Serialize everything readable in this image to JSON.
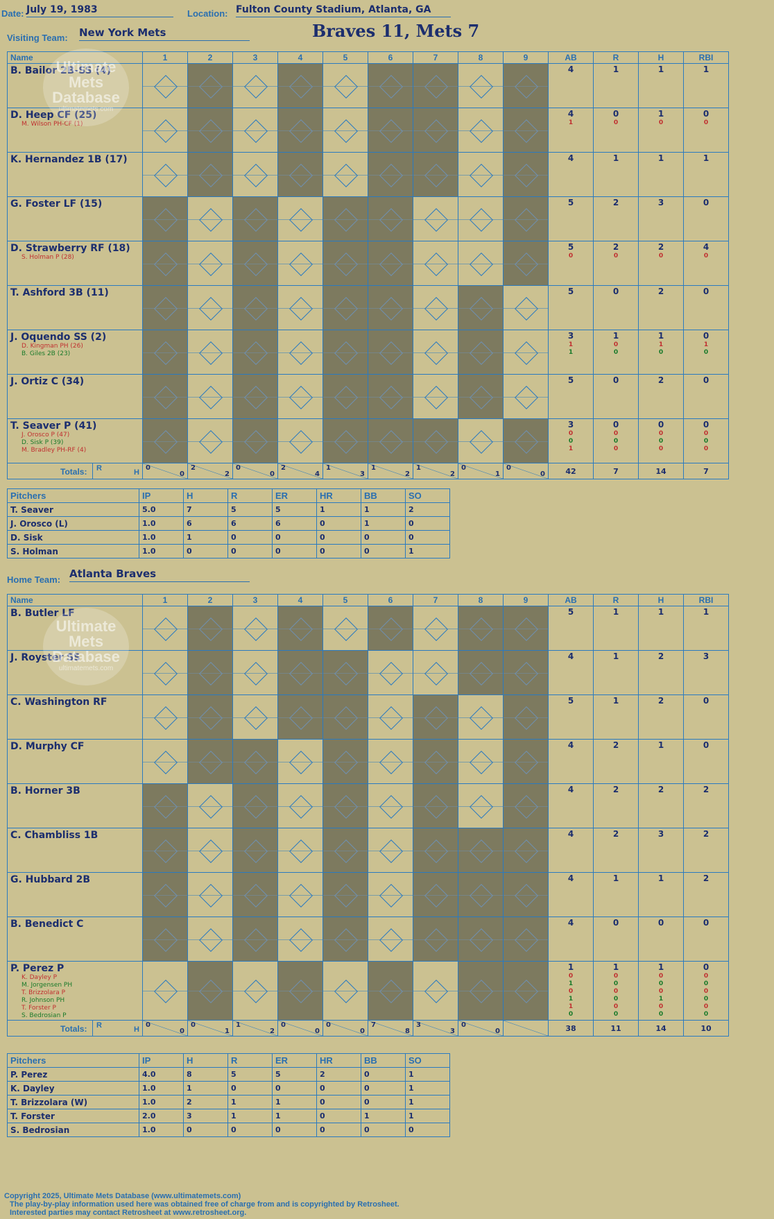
{
  "header": {
    "date_label": "Date:",
    "date": "July 19, 1983",
    "location_label": "Location:",
    "location": "Fulton County Stadium, Atlanta, GA",
    "title": "Braves 11, Mets 7"
  },
  "watermark": {
    "line1": "Ultimate",
    "line2": "Mets",
    "line3": "Database",
    "url": "ultimatemets.com"
  },
  "visitors": {
    "team_label": "Visiting Team:",
    "team": "New York Mets",
    "col_name": "Name",
    "innings": [
      "1",
      "2",
      "3",
      "4",
      "5",
      "6",
      "7",
      "8",
      "9"
    ],
    "stat_cols": [
      "AB",
      "R",
      "H",
      "RBI"
    ],
    "players": [
      {
        "name": "B. Bailor 2B-SS (4)",
        "subs": [],
        "ab": [
          "4"
        ],
        "r": [
          "1"
        ],
        "h": [
          "1"
        ],
        "rbi": [
          "1"
        ]
      },
      {
        "name": "D. Heep CF (25)",
        "subs": [
          "M. Wilson PH-CF (1)"
        ],
        "ab": [
          "4",
          "1"
        ],
        "r": [
          "0",
          "0"
        ],
        "h": [
          "1",
          "0"
        ],
        "rbi": [
          "0",
          "0"
        ]
      },
      {
        "name": "K. Hernandez 1B (17)",
        "subs": [],
        "ab": [
          "4"
        ],
        "r": [
          "1"
        ],
        "h": [
          "1"
        ],
        "rbi": [
          "1"
        ]
      },
      {
        "name": "G. Foster LF (15)",
        "subs": [],
        "ab": [
          "5"
        ],
        "r": [
          "2"
        ],
        "h": [
          "3"
        ],
        "rbi": [
          "0"
        ]
      },
      {
        "name": "D. Strawberry RF (18)",
        "subs": [
          "S. Holman P (28)"
        ],
        "ab": [
          "5",
          "0"
        ],
        "r": [
          "2",
          "0"
        ],
        "h": [
          "2",
          "0"
        ],
        "rbi": [
          "4",
          "0"
        ]
      },
      {
        "name": "T. Ashford 3B (11)",
        "subs": [],
        "ab": [
          "5"
        ],
        "r": [
          "0"
        ],
        "h": [
          "2"
        ],
        "rbi": [
          "0"
        ]
      },
      {
        "name": "J. Oquendo SS (2)",
        "subs": [
          "D. Kingman PH (26)",
          "B. Giles 2B (23)"
        ],
        "ab": [
          "3",
          "1",
          "1"
        ],
        "r": [
          "1",
          "0",
          "0"
        ],
        "h": [
          "1",
          "1",
          "0"
        ],
        "rbi": [
          "0",
          "1",
          "0"
        ]
      },
      {
        "name": "J. Ortiz C (34)",
        "subs": [],
        "ab": [
          "5"
        ],
        "r": [
          "0"
        ],
        "h": [
          "2"
        ],
        "rbi": [
          "0"
        ]
      },
      {
        "name": "T. Seaver P (41)",
        "subs": [
          "J. Orosco P (47)",
          "D. Sisk P (39)",
          "M. Bradley PH-RF (4)"
        ],
        "ab": [
          "3",
          "0",
          "0",
          "1"
        ],
        "r": [
          "0",
          "0",
          "0",
          "0"
        ],
        "h": [
          "0",
          "0",
          "0",
          "0"
        ],
        "rbi": [
          "0",
          "0",
          "0",
          "0"
        ]
      }
    ],
    "totals_label": "Totals:",
    "rh_r": "R",
    "rh_h": "H",
    "inning_totals": [
      [
        "0",
        "0"
      ],
      [
        "2",
        "2"
      ],
      [
        "0",
        "0"
      ],
      [
        "2",
        "4"
      ],
      [
        "1",
        "3"
      ],
      [
        "1",
        "2"
      ],
      [
        "1",
        "2"
      ],
      [
        "0",
        "1"
      ],
      [
        "0",
        "0"
      ]
    ],
    "totals": [
      "42",
      "7",
      "14",
      "7"
    ],
    "pitchers_label": "Pitchers",
    "pitch_cols": [
      "IP",
      "H",
      "R",
      "ER",
      "HR",
      "BB",
      "SO"
    ],
    "pitchers": [
      {
        "name": "T. Seaver",
        "stats": [
          "5.0",
          "7",
          "5",
          "5",
          "1",
          "1",
          "2"
        ]
      },
      {
        "name": "J. Orosco (L)",
        "stats": [
          "1.0",
          "6",
          "6",
          "6",
          "0",
          "1",
          "0"
        ]
      },
      {
        "name": "D. Sisk",
        "stats": [
          "1.0",
          "1",
          "0",
          "0",
          "0",
          "0",
          "0"
        ]
      },
      {
        "name": "S. Holman",
        "stats": [
          "1.0",
          "0",
          "0",
          "0",
          "0",
          "0",
          "1"
        ]
      }
    ]
  },
  "home": {
    "team_label": "Home Team:",
    "team": "Atlanta Braves",
    "col_name": "Name",
    "innings": [
      "1",
      "2",
      "3",
      "4",
      "5",
      "6",
      "7",
      "8",
      "9"
    ],
    "stat_cols": [
      "AB",
      "R",
      "H",
      "RBI"
    ],
    "players": [
      {
        "name": "B. Butler LF",
        "subs": [],
        "ab": [
          "5"
        ],
        "r": [
          "1"
        ],
        "h": [
          "1"
        ],
        "rbi": [
          "1"
        ]
      },
      {
        "name": "J. Royster SS",
        "subs": [],
        "ab": [
          "4"
        ],
        "r": [
          "1"
        ],
        "h": [
          "2"
        ],
        "rbi": [
          "3"
        ]
      },
      {
        "name": "C. Washington RF",
        "subs": [],
        "ab": [
          "5"
        ],
        "r": [
          "1"
        ],
        "h": [
          "2"
        ],
        "rbi": [
          "0"
        ]
      },
      {
        "name": "D. Murphy CF",
        "subs": [],
        "ab": [
          "4"
        ],
        "r": [
          "2"
        ],
        "h": [
          "1"
        ],
        "rbi": [
          "0"
        ]
      },
      {
        "name": "B. Horner 3B",
        "subs": [],
        "ab": [
          "4"
        ],
        "r": [
          "2"
        ],
        "h": [
          "2"
        ],
        "rbi": [
          "2"
        ]
      },
      {
        "name": "C. Chambliss 1B",
        "subs": [],
        "ab": [
          "4"
        ],
        "r": [
          "2"
        ],
        "h": [
          "3"
        ],
        "rbi": [
          "2"
        ]
      },
      {
        "name": "G. Hubbard 2B",
        "subs": [],
        "ab": [
          "4"
        ],
        "r": [
          "1"
        ],
        "h": [
          "1"
        ],
        "rbi": [
          "2"
        ]
      },
      {
        "name": "B. Benedict C",
        "subs": [],
        "ab": [
          "4"
        ],
        "r": [
          "0"
        ],
        "h": [
          "0"
        ],
        "rbi": [
          "0"
        ]
      },
      {
        "name": "P. Perez P",
        "subs": [
          "K. Dayley P",
          "M. Jorgensen PH",
          "T. Brizzolara P",
          "R. Johnson PH",
          "T. Forster P",
          "S. Bedrosian P"
        ],
        "ab": [
          "1",
          "0",
          "1",
          "0",
          "1",
          "1",
          "0"
        ],
        "r": [
          "1",
          "0",
          "0",
          "0",
          "0",
          "0",
          "0"
        ],
        "h": [
          "1",
          "0",
          "0",
          "0",
          "1",
          "0",
          "0"
        ],
        "rbi": [
          "0",
          "0",
          "0",
          "0",
          "0",
          "0",
          "0"
        ]
      }
    ],
    "totals_label": "Totals:",
    "rh_r": "R",
    "rh_h": "H",
    "inning_totals": [
      [
        "0",
        "0"
      ],
      [
        "0",
        "1"
      ],
      [
        "1",
        "2"
      ],
      [
        "0",
        "0"
      ],
      [
        "0",
        "0"
      ],
      [
        "7",
        "8"
      ],
      [
        "3",
        "3"
      ],
      [
        "0",
        "0"
      ],
      [
        "",
        ""
      ]
    ],
    "totals": [
      "38",
      "11",
      "14",
      "10"
    ],
    "pitchers_label": "Pitchers",
    "pitch_cols": [
      "IP",
      "H",
      "R",
      "ER",
      "HR",
      "BB",
      "SO"
    ],
    "pitchers": [
      {
        "name": "P. Perez",
        "stats": [
          "4.0",
          "8",
          "5",
          "5",
          "2",
          "0",
          "1"
        ]
      },
      {
        "name": "K. Dayley",
        "stats": [
          "1.0",
          "1",
          "0",
          "0",
          "0",
          "0",
          "1"
        ]
      },
      {
        "name": "T. Brizzolara (W)",
        "stats": [
          "1.0",
          "2",
          "1",
          "1",
          "0",
          "0",
          "1"
        ]
      },
      {
        "name": "T. Forster",
        "stats": [
          "2.0",
          "3",
          "1",
          "1",
          "0",
          "1",
          "1"
        ]
      },
      {
        "name": "S. Bedrosian",
        "stats": [
          "1.0",
          "0",
          "0",
          "0",
          "0",
          "0",
          "0"
        ]
      }
    ]
  },
  "colors": {
    "background": "#cbc191",
    "grid": "#2a7ac0",
    "shade": "#7d7a5f",
    "ink": "#1c2e6e",
    "red": "#e02020",
    "green": "#1a7a2a"
  },
  "footer": {
    "line1": "Copyright 2025, Ultimate Mets Database (www.ultimatemets.com)",
    "line2": "The play-by-play information used here was obtained free of charge from and is copyrighted by Retrosheet.",
    "line3": "Interested parties may contact Retrosheet at www.retrosheet.org."
  }
}
